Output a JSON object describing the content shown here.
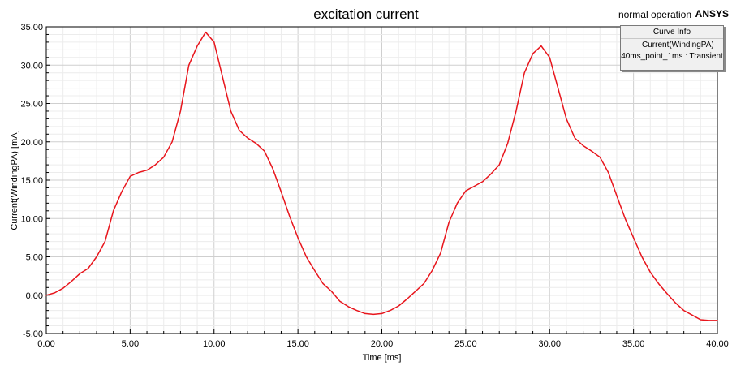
{
  "chart_data": {
    "type": "line",
    "title": "excitation current",
    "subtitle": "normal operation",
    "brand": "ANSYS",
    "xlabel": "Time [ms]",
    "ylabel": "Current(WindingPA) [mA]",
    "xlim": [
      0,
      40
    ],
    "ylim": [
      -5,
      35
    ],
    "xticks": [
      "0.00",
      "5.00",
      "10.00",
      "15.00",
      "20.00",
      "25.00",
      "30.00",
      "35.00",
      "40.00"
    ],
    "yticks": [
      "-5.00",
      "0.00",
      "5.00",
      "10.00",
      "15.00",
      "20.00",
      "25.00",
      "30.00",
      "35.00"
    ],
    "grid": true,
    "legend": {
      "title": "Curve Info",
      "placement": "top-right",
      "entries": [
        {
          "name": "Current(WindingPA)",
          "detail": "40ms_point_1ms : Transient",
          "color": "#e8151c"
        }
      ]
    },
    "series": [
      {
        "name": "Current(WindingPA)",
        "color": "#e8151c",
        "x": [
          0,
          0.5,
          1,
          1.5,
          2,
          2.5,
          3,
          3.5,
          4,
          4.5,
          5,
          5.5,
          6,
          6.5,
          7,
          7.5,
          8,
          8.5,
          9,
          9.5,
          10,
          10.5,
          11,
          11.5,
          12,
          12.5,
          13,
          13.5,
          14,
          14.5,
          15,
          15.5,
          16,
          16.5,
          17,
          17.5,
          18,
          18.5,
          19,
          19.5,
          20,
          20.5,
          21,
          21.5,
          22,
          22.5,
          23,
          23.5,
          24,
          24.5,
          25,
          25.5,
          26,
          26.5,
          27,
          27.5,
          28,
          28.5,
          29,
          29.5,
          30,
          30.5,
          31,
          31.5,
          32,
          32.5,
          33,
          33.5,
          34,
          34.5,
          35,
          35.5,
          36,
          36.5,
          37,
          37.5,
          38,
          38.5,
          39,
          39.5,
          40
        ],
        "values": [
          0.0,
          0.3,
          0.9,
          1.8,
          2.8,
          3.5,
          5.0,
          7.0,
          11.0,
          13.5,
          15.5,
          16.0,
          16.3,
          17.0,
          18.0,
          20.0,
          24.0,
          30.0,
          32.5,
          34.3,
          33.0,
          28.5,
          24.0,
          21.5,
          20.5,
          19.8,
          18.8,
          16.5,
          13.5,
          10.3,
          7.5,
          5.0,
          3.2,
          1.5,
          0.5,
          -0.8,
          -1.5,
          -2.0,
          -2.4,
          -2.5,
          -2.4,
          -2.0,
          -1.4,
          -0.5,
          0.5,
          1.5,
          3.2,
          5.5,
          9.5,
          12.0,
          13.6,
          14.2,
          14.8,
          15.8,
          17.0,
          19.8,
          24.0,
          29.0,
          31.5,
          32.5,
          31.0,
          27.0,
          23.0,
          20.5,
          19.5,
          18.8,
          18.0,
          16.0,
          13.0,
          10.0,
          7.5,
          5.0,
          3.0,
          1.5,
          0.2,
          -1.0,
          -2.0,
          -2.6,
          -3.2,
          -3.3,
          -3.3
        ]
      }
    ]
  }
}
